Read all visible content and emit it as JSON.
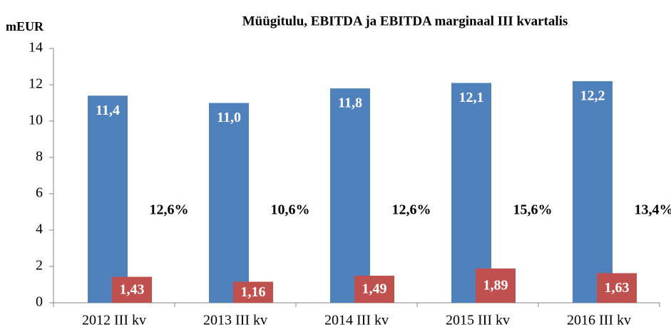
{
  "chart_data": {
    "type": "bar",
    "title": "Müügitulu, EBITDA ja EBITDA marginaal III kvartalis",
    "y_label": "mEUR",
    "categories": [
      "2012 III kv",
      "2013 III kv",
      "2014 III kv",
      "2015 III kv",
      "2016 III kv"
    ],
    "series": [
      {
        "color": "#4f81bd",
        "values": [
          11.4,
          11.0,
          11.8,
          12.1,
          12.2
        ],
        "value_labels": [
          "11,4",
          "11,0",
          "11,8",
          "12,1",
          "12,2"
        ]
      },
      {
        "color": "#c0504d",
        "values": [
          1.43,
          1.16,
          1.49,
          1.89,
          1.63
        ],
        "value_labels": [
          "1,43",
          "1,16",
          "1,49",
          "1,89",
          "1,63"
        ]
      }
    ],
    "annotations": [
      "12,6%",
      "10,6%",
      "12,6%",
      "15,6%",
      "13,4%"
    ],
    "ylim": [
      0,
      14
    ],
    "yticks": [
      0,
      2,
      4,
      6,
      8,
      10,
      12,
      14
    ],
    "grid": false
  }
}
